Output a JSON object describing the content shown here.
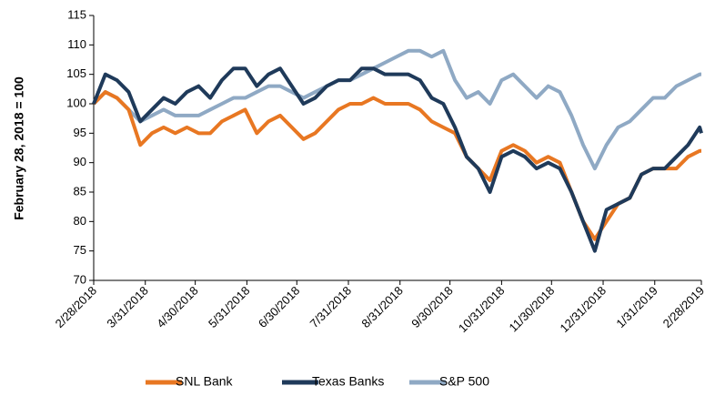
{
  "chart_data": {
    "type": "line",
    "y_label": "February 28, 2018 = 100",
    "x": [
      "2/28/2018",
      "3/7/2018",
      "3/14/2018",
      "3/21/2018",
      "3/28/2018",
      "4/4/2018",
      "4/11/2018",
      "4/18/2018",
      "4/25/2018",
      "5/2/2018",
      "5/9/2018",
      "5/16/2018",
      "5/23/2018",
      "5/30/2018",
      "6/6/2018",
      "6/13/2018",
      "6/20/2018",
      "6/27/2018",
      "7/4/2018",
      "7/11/2018",
      "7/18/2018",
      "7/25/2018",
      "8/1/2018",
      "8/8/2018",
      "8/15/2018",
      "8/22/2018",
      "8/29/2018",
      "9/5/2018",
      "9/12/2018",
      "9/19/2018",
      "9/26/2018",
      "10/3/2018",
      "10/10/2018",
      "10/17/2018",
      "10/24/2018",
      "10/31/2018",
      "11/7/2018",
      "11/14/2018",
      "11/21/2018",
      "11/28/2018",
      "12/5/2018",
      "12/12/2018",
      "12/19/2018",
      "12/26/2018",
      "1/2/2019",
      "1/9/2019",
      "1/16/2019",
      "1/23/2019",
      "1/30/2019",
      "2/6/2019",
      "2/13/2019",
      "2/20/2019",
      "2/27/2019",
      "2/28/2019"
    ],
    "series": [
      {
        "name": "SNL Bank",
        "color": "#e87722",
        "values": [
          100,
          102,
          101,
          99,
          93,
          95,
          96,
          95,
          96,
          95,
          95,
          97,
          98,
          99,
          95,
          97,
          98,
          96,
          94,
          95,
          97,
          99,
          100,
          100,
          101,
          100,
          100,
          100,
          99,
          97,
          96,
          95,
          91,
          89,
          87,
          92,
          93,
          92,
          90,
          91,
          90,
          85,
          80,
          77,
          80,
          83,
          84,
          88,
          89,
          89,
          89,
          91,
          92,
          92
        ]
      },
      {
        "name": "Texas Banks",
        "color": "#1f3a5a",
        "values": [
          100,
          105,
          104,
          102,
          97,
          99,
          101,
          100,
          102,
          103,
          101,
          104,
          106,
          106,
          103,
          105,
          106,
          103,
          100,
          101,
          103,
          104,
          104,
          106,
          106,
          105,
          105,
          105,
          104,
          101,
          100,
          96,
          91,
          89,
          85,
          91,
          92,
          91,
          89,
          90,
          89,
          85,
          80,
          75,
          82,
          83,
          84,
          88,
          89,
          89,
          91,
          93,
          96,
          95
        ]
      },
      {
        "name": "S&P 500",
        "color": "#8fa9c4",
        "values": [
          100,
          102,
          101,
          99,
          97,
          98,
          99,
          98,
          98,
          98,
          99,
          100,
          101,
          101,
          102,
          103,
          103,
          102,
          101,
          102,
          103,
          104,
          104,
          105,
          106,
          107,
          108,
          109,
          109,
          108,
          109,
          104,
          101,
          102,
          100,
          104,
          105,
          103,
          101,
          103,
          102,
          98,
          93,
          89,
          93,
          96,
          97,
          99,
          101,
          101,
          103,
          104,
          105,
          105
        ]
      }
    ],
    "xlim": [
      "2/28/2018",
      "2/28/2019"
    ],
    "xticks": [
      "2/28/2018",
      "3/31/2018",
      "4/30/2018",
      "5/31/2018",
      "6/30/2018",
      "7/31/2018",
      "8/31/2018",
      "9/30/2018",
      "10/31/2018",
      "11/30/2018",
      "12/31/2018",
      "1/31/2019",
      "2/28/2019"
    ],
    "ylim": [
      70,
      115
    ],
    "yticks": [
      70,
      75,
      80,
      85,
      90,
      95,
      100,
      105,
      110,
      115
    ],
    "legend": "bottom"
  }
}
